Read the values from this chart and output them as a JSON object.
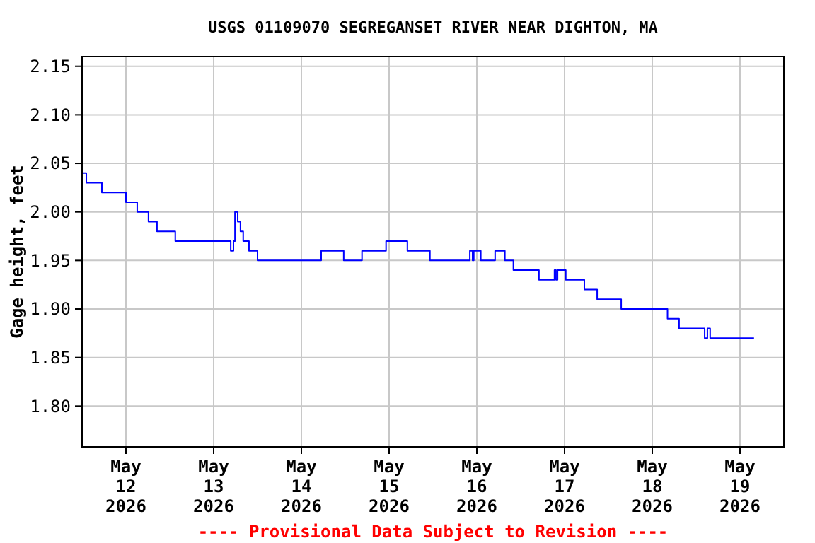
{
  "chart_data": {
    "type": "step",
    "title": "USGS 01109070 SEGREGANSET RIVER NEAR DIGHTON, MA",
    "ylabel": "Gage height, feet",
    "annotations": [
      "---- Provisional Data Subject to Revision ----"
    ],
    "x": [
      "2026-05-11T12:15",
      "2026-05-11T13:10",
      "2026-05-11T17:25",
      "2026-05-12T00:00",
      "2026-05-12T03:05",
      "2026-05-12T06:10",
      "2026-05-12T08:30",
      "2026-05-12T13:30",
      "2026-05-13T04:40",
      "2026-05-13T05:25",
      "2026-05-13T05:50",
      "2026-05-13T06:35",
      "2026-05-13T07:20",
      "2026-05-13T08:05",
      "2026-05-13T09:40",
      "2026-05-13T12:00",
      "2026-05-14T05:25",
      "2026-05-14T11:35",
      "2026-05-14T16:35",
      "2026-05-14T23:10",
      "2026-05-15T05:00",
      "2026-05-15T11:10",
      "2026-05-15T22:05",
      "2026-05-15T22:50",
      "2026-05-15T23:10",
      "2026-05-16T01:05",
      "2026-05-16T05:00",
      "2026-05-16T07:40",
      "2026-05-16T10:00",
      "2026-05-16T17:00",
      "2026-05-16T21:15",
      "2026-05-16T21:40",
      "2026-05-16T22:05",
      "2026-05-17T00:20",
      "2026-05-17T05:25",
      "2026-05-17T08:55",
      "2026-05-17T15:30",
      "2026-05-18T04:10",
      "2026-05-18T07:20",
      "2026-05-18T14:20",
      "2026-05-18T15:05",
      "2026-05-18T15:50",
      "2026-05-19T03:50"
    ],
    "series": [
      {
        "color": "#0000ff",
        "values": [
          2.04,
          2.03,
          2.02,
          2.01,
          2.0,
          1.99,
          1.98,
          1.97,
          1.96,
          1.97,
          2.0,
          1.99,
          1.98,
          1.97,
          1.96,
          1.95,
          1.96,
          1.95,
          1.96,
          1.97,
          1.96,
          1.95,
          1.96,
          1.95,
          1.96,
          1.95,
          1.96,
          1.95,
          1.94,
          1.93,
          1.94,
          1.93,
          1.94,
          1.93,
          1.92,
          1.91,
          1.9,
          1.89,
          1.88,
          1.87,
          1.88,
          1.87,
          1.87
        ]
      }
    ],
    "xlim": [
      "2026-05-11T12:00",
      "2026-05-19T12:00"
    ],
    "xticks": [
      {
        "value": "2026-05-12",
        "label": "May\n12\n2026"
      },
      {
        "value": "2026-05-13",
        "label": "May\n13\n2026"
      },
      {
        "value": "2026-05-14",
        "label": "May\n14\n2026"
      },
      {
        "value": "2026-05-15",
        "label": "May\n15\n2026"
      },
      {
        "value": "2026-05-16",
        "label": "May\n16\n2026"
      },
      {
        "value": "2026-05-17",
        "label": "May\n17\n2026"
      },
      {
        "value": "2026-05-18",
        "label": "May\n18\n2026"
      },
      {
        "value": "2026-05-19",
        "label": "May\n19\n2026"
      }
    ],
    "ylim": [
      1.758,
      2.16
    ],
    "yticks": [
      {
        "value": 1.8,
        "label": "1.80"
      },
      {
        "value": 1.85,
        "label": "1.85"
      },
      {
        "value": 1.9,
        "label": "1.90"
      },
      {
        "value": 1.95,
        "label": "1.95"
      },
      {
        "value": 2.0,
        "label": "2.00"
      },
      {
        "value": 2.05,
        "label": "2.05"
      },
      {
        "value": 2.1,
        "label": "2.10"
      },
      {
        "value": 2.15,
        "label": "2.15"
      }
    ],
    "grid": true,
    "marker": "none",
    "line_style": "solid"
  }
}
